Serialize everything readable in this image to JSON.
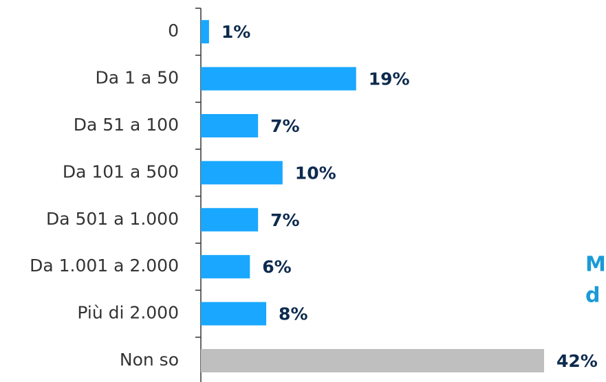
{
  "chart_data": {
    "type": "barh",
    "categories": [
      "0",
      "Da 1 a 50",
      "Da 51 a 100",
      "Da 101 a 500",
      "Da 501 a 1.000",
      "Da 1.001 a 2.000",
      "Più di 2.000",
      "Non so"
    ],
    "values": [
      1,
      19,
      7,
      10,
      7,
      6,
      8,
      42
    ],
    "value_labels": [
      "1%",
      "19%",
      "7%",
      "10%",
      "7%",
      "6%",
      "8%",
      "42%"
    ],
    "colors": [
      "#1aa7ff",
      "#1aa7ff",
      "#1aa7ff",
      "#1aa7ff",
      "#1aa7ff",
      "#1aa7ff",
      "#1aa7ff",
      "#bfbfbf"
    ],
    "annotations": [
      "M",
      "d"
    ]
  }
}
